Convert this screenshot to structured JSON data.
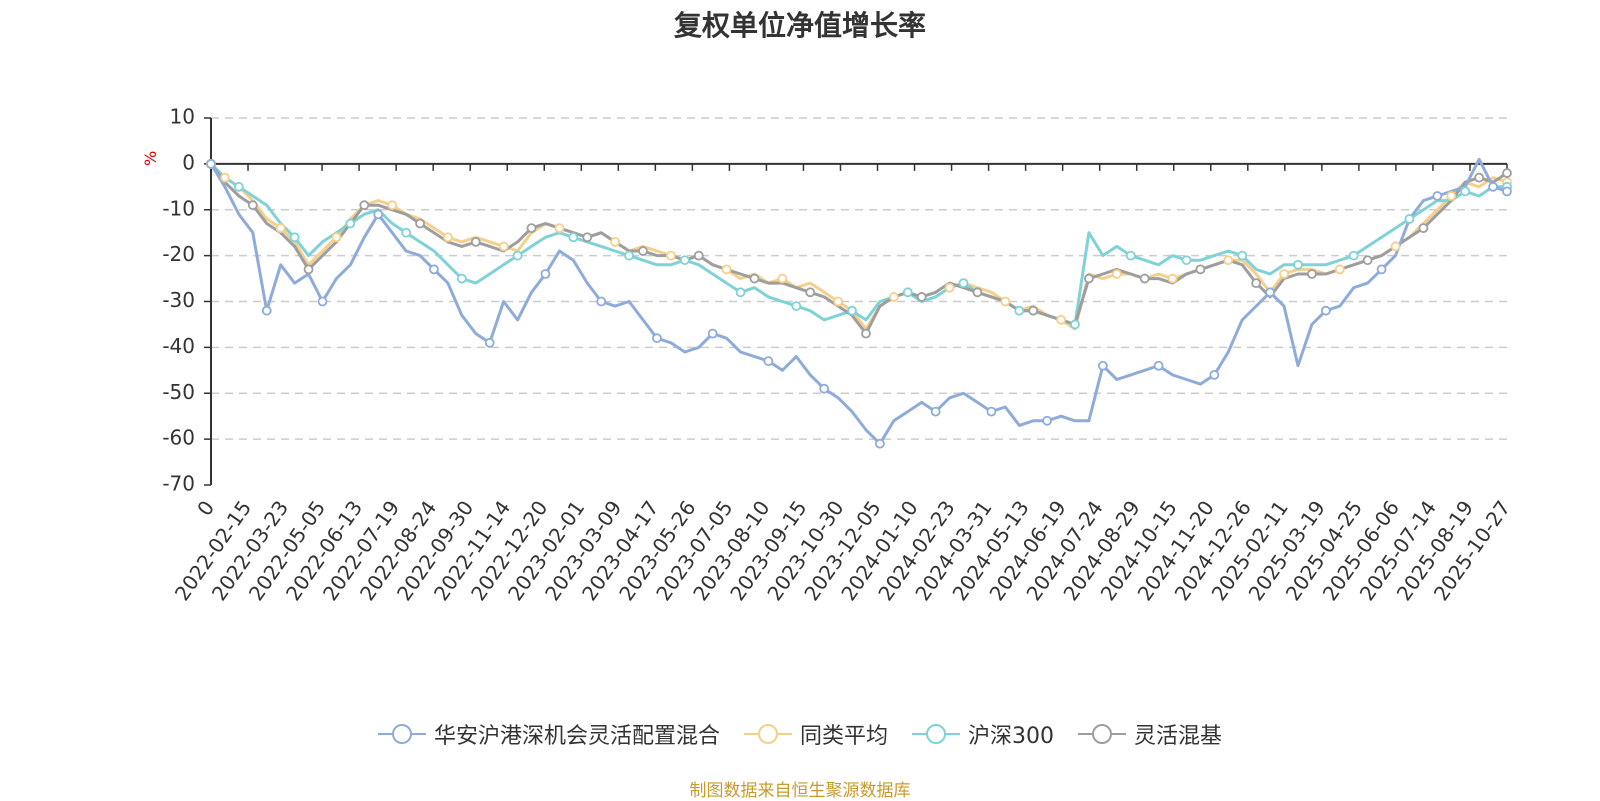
{
  "chart_data": {
    "type": "line",
    "title": "复权单位净值增长率",
    "ylabel": "%",
    "ylim": [
      -70,
      10
    ],
    "yticks": [
      10,
      0,
      -10,
      -20,
      -30,
      -40,
      -50,
      -60,
      -70
    ],
    "xlabels": [
      "0",
      "2022-02-15",
      "2022-03-23",
      "2022-05-05",
      "2022-06-13",
      "2022-07-19",
      "2022-08-24",
      "2022-09-30",
      "2022-11-14",
      "2022-12-20",
      "2023-02-01",
      "2023-03-09",
      "2023-04-17",
      "2023-05-26",
      "2023-07-05",
      "2023-08-10",
      "2023-09-15",
      "2023-10-30",
      "2023-12-05",
      "2024-01-10",
      "2024-02-23",
      "2024-03-31",
      "2024-05-13",
      "2024-06-19",
      "2024-07-24",
      "2024-08-29",
      "2024-10-15",
      "2024-11-20",
      "2024-12-26",
      "2025-02-11",
      "2025-03-19",
      "2025-04-25",
      "2025-06-06",
      "2025-07-14",
      "2025-08-19",
      "2025-10-27"
    ],
    "series": [
      {
        "name": "华安沪港深机会灵活配置混合",
        "color": "#8eabda",
        "values": [
          0,
          -5,
          -11,
          -15,
          -32,
          -22,
          -26,
          -24,
          -30,
          -25,
          -22,
          -16,
          -11,
          -15,
          -19,
          -20,
          -23,
          -26,
          -33,
          -37,
          -39,
          -30,
          -34,
          -28,
          -24,
          -19,
          -21,
          -26,
          -30,
          -31,
          -30,
          -34,
          -38,
          -39,
          -41,
          -40,
          -37,
          -38,
          -41,
          -42,
          -43,
          -45,
          -42,
          -46,
          -49,
          -51,
          -54,
          -58,
          -61,
          -56,
          -54,
          -52,
          -54,
          -51,
          -50,
          -52,
          -54,
          -53,
          -57,
          -56,
          -56,
          -55,
          -56,
          -56,
          -44,
          -47,
          -46,
          -45,
          -44,
          -46,
          -47,
          -48,
          -46,
          -41,
          -34,
          -31,
          -28,
          -31,
          -44,
          -35,
          -32,
          -31,
          -27,
          -26,
          -23,
          -20,
          -12,
          -8,
          -7,
          -6,
          -5,
          1,
          -5,
          -6
        ]
      },
      {
        "name": "同类平均",
        "color": "#f5cf8b",
        "values": [
          0,
          -3,
          -5,
          -8,
          -12,
          -14,
          -17,
          -22,
          -19,
          -16,
          -12,
          -9,
          -8,
          -9,
          -11,
          -12,
          -14,
          -16,
          -17,
          -16,
          -17,
          -18,
          -19,
          -15,
          -13,
          -14,
          -15,
          -16,
          -15,
          -17,
          -19,
          -18,
          -19,
          -20,
          -21,
          -20,
          -22,
          -23,
          -25,
          -24,
          -26,
          -25,
          -27,
          -26,
          -28,
          -30,
          -32,
          -36,
          -31,
          -29,
          -28,
          -30,
          -29,
          -27,
          -26,
          -27,
          -28,
          -30,
          -32,
          -31,
          -33,
          -34,
          -36,
          -24,
          -25,
          -24,
          -24,
          -25,
          -24,
          -25,
          -24,
          -23,
          -22,
          -21,
          -21,
          -24,
          -28,
          -24,
          -23,
          -23,
          -24,
          -23,
          -22,
          -21,
          -20,
          -18,
          -16,
          -13,
          -10,
          -7,
          -4,
          -5,
          -3,
          -4
        ]
      },
      {
        "name": "沪深300",
        "color": "#7fd2d6",
        "values": [
          0,
          -3,
          -5,
          -7,
          -9,
          -13,
          -16,
          -20,
          -17,
          -15,
          -13,
          -11,
          -10,
          -13,
          -15,
          -17,
          -19,
          -22,
          -25,
          -26,
          -24,
          -22,
          -20,
          -18,
          -16,
          -15,
          -16,
          -17,
          -18,
          -19,
          -20,
          -21,
          -22,
          -22,
          -21,
          -22,
          -24,
          -26,
          -28,
          -27,
          -29,
          -30,
          -31,
          -32,
          -34,
          -33,
          -32,
          -34,
          -30,
          -29,
          -28,
          -30,
          -29,
          -27,
          -26,
          -28,
          -29,
          -30,
          -32,
          -32,
          -33,
          -34,
          -35,
          -15,
          -20,
          -18,
          -20,
          -21,
          -22,
          -20,
          -21,
          -21,
          -20,
          -19,
          -20,
          -23,
          -24,
          -22,
          -22,
          -22,
          -22,
          -21,
          -20,
          -18,
          -16,
          -14,
          -12,
          -10,
          -8,
          -8,
          -6,
          -7,
          -5,
          -5
        ]
      },
      {
        "name": "灵活混基",
        "color": "#9e9e9e",
        "values": [
          0,
          -4,
          -7,
          -9,
          -13,
          -15,
          -18,
          -23,
          -20,
          -17,
          -13,
          -9,
          -9,
          -10,
          -11,
          -13,
          -15,
          -17,
          -18,
          -17,
          -18,
          -19,
          -17,
          -14,
          -13,
          -14,
          -15,
          -16,
          -15,
          -17,
          -19,
          -19,
          -20,
          -20,
          -21,
          -20,
          -22,
          -23,
          -24,
          -25,
          -26,
          -26,
          -27,
          -28,
          -29,
          -31,
          -33,
          -37,
          -31,
          -29,
          -28,
          -29,
          -28,
          -26,
          -27,
          -28,
          -29,
          -30,
          -32,
          -32,
          -33,
          -34,
          -35,
          -25,
          -24,
          -23,
          -24,
          -25,
          -25,
          -26,
          -24,
          -23,
          -22,
          -21,
          -22,
          -26,
          -29,
          -25,
          -24,
          -24,
          -24,
          -23,
          -22,
          -21,
          -20,
          -18,
          -16,
          -14,
          -11,
          -8,
          -4,
          -3,
          -4,
          -2
        ]
      }
    ]
  },
  "source": {
    "text": "制图数据来自恒生聚源数据库",
    "color": "#c79a2e"
  }
}
